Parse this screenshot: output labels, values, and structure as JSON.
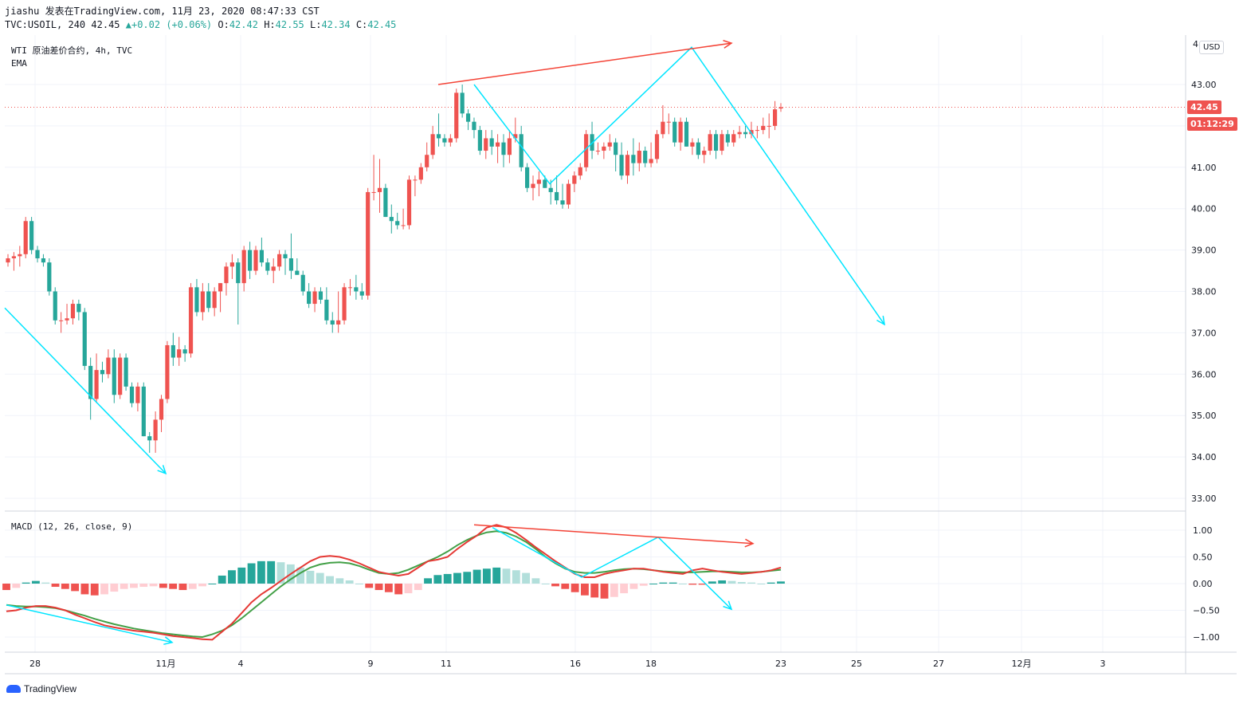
{
  "header": {
    "line1": "jiashu 发表在TradingView.com, 11月 23, 2020 08:47:33 CST",
    "symbol": "TVC:USOIL, 240",
    "last": "42.45",
    "change_arrow": "▲",
    "change": "+0.02 (+0.06%)",
    "o_label": "O:",
    "o": "42.42",
    "h_label": "H:",
    "h": "42.55",
    "l_label": "L:",
    "l": "42.34",
    "c_label": "C:",
    "c": "42.45"
  },
  "legend": {
    "main": "WTI 原油差价合约, 4h, TVC",
    "ema": "EMA",
    "macd": "MACD (12, 26, close, 9)"
  },
  "price_axis": {
    "currency": "USD",
    "top_label": "4",
    "last_price_tag": "42.45",
    "countdown_tag": "01:12:29"
  },
  "branding": {
    "logo_text": "TradingView"
  },
  "colors": {
    "up": "#ef5350",
    "down": "#26a69a",
    "macd_line": "#e53935",
    "signal_line": "#43a047",
    "annotation_cyan": "#00e5ff",
    "annotation_red": "#f44336"
  },
  "chart_data": [
    {
      "type": "candlestick",
      "title": "WTI 原油差价合约, 4h, TVC",
      "ylim": [
        32.6,
        44.0
      ],
      "yticks": [
        33.0,
        34.0,
        35.0,
        36.0,
        37.0,
        38.0,
        39.0,
        40.0,
        41.0,
        42.0,
        43.0
      ],
      "ytick_labels": [
        "33.00",
        "34.00",
        "35.00",
        "36.00",
        "37.00",
        "38.00",
        "39.00",
        "40.00",
        "41.00",
        "42.00",
        "43.00"
      ],
      "xtick_labels": [
        "28",
        "11月",
        "4",
        "9",
        "11",
        "16",
        "18",
        "23",
        "25",
        "27",
        "12月",
        "3"
      ],
      "candles": [
        [
          38.7,
          38.9,
          38.6,
          38.8
        ],
        [
          38.8,
          38.95,
          38.5,
          38.85
        ],
        [
          38.85,
          39.1,
          38.6,
          38.9
        ],
        [
          38.9,
          39.8,
          38.8,
          39.7
        ],
        [
          39.7,
          39.8,
          38.9,
          39.0
        ],
        [
          39.0,
          39.1,
          38.7,
          38.8
        ],
        [
          38.8,
          38.9,
          38.6,
          38.7
        ],
        [
          38.7,
          38.8,
          37.9,
          38.0
        ],
        [
          38.0,
          38.1,
          37.2,
          37.3
        ],
        [
          37.3,
          37.5,
          37.0,
          37.3
        ],
        [
          37.3,
          37.7,
          37.2,
          37.35
        ],
        [
          37.35,
          37.8,
          37.2,
          37.7
        ],
        [
          37.7,
          37.8,
          37.3,
          37.5
        ],
        [
          37.5,
          37.6,
          36.1,
          36.2
        ],
        [
          36.2,
          36.4,
          34.9,
          35.4
        ],
        [
          35.4,
          36.5,
          35.3,
          36.1
        ],
        [
          36.1,
          36.3,
          35.8,
          36.0
        ],
        [
          36.0,
          36.6,
          35.9,
          36.4
        ],
        [
          36.4,
          36.6,
          35.3,
          35.5
        ],
        [
          35.5,
          36.5,
          35.4,
          36.4
        ],
        [
          36.4,
          36.5,
          35.6,
          35.7
        ],
        [
          35.7,
          35.8,
          35.2,
          35.3
        ],
        [
          35.3,
          35.8,
          35.1,
          35.7
        ],
        [
          35.7,
          35.8,
          34.5,
          34.5
        ],
        [
          34.5,
          34.6,
          34.1,
          34.4
        ],
        [
          34.4,
          35.1,
          34.1,
          34.9
        ],
        [
          34.9,
          35.5,
          34.6,
          35.4
        ],
        [
          35.4,
          36.8,
          35.3,
          36.7
        ],
        [
          36.7,
          37.0,
          36.2,
          36.4
        ],
        [
          36.4,
          36.9,
          36.2,
          36.6
        ],
        [
          36.6,
          36.7,
          36.3,
          36.5
        ],
        [
          36.5,
          38.2,
          36.4,
          38.1
        ],
        [
          38.1,
          38.3,
          37.4,
          37.5
        ],
        [
          37.5,
          38.2,
          37.3,
          38.0
        ],
        [
          38.0,
          38.2,
          37.5,
          37.6
        ],
        [
          37.6,
          38.1,
          37.4,
          38.0
        ],
        [
          38.0,
          38.2,
          37.5,
          38.2
        ],
        [
          38.2,
          38.7,
          37.9,
          38.6
        ],
        [
          38.6,
          38.9,
          38.3,
          38.7
        ],
        [
          38.7,
          38.8,
          37.2,
          38.2
        ],
        [
          38.2,
          39.1,
          38.0,
          39.0
        ],
        [
          39.0,
          39.2,
          38.3,
          38.5
        ],
        [
          38.5,
          39.1,
          38.4,
          39.0
        ],
        [
          39.0,
          39.3,
          38.6,
          38.7
        ],
        [
          38.7,
          38.8,
          38.4,
          38.5
        ],
        [
          38.5,
          38.8,
          38.2,
          38.6
        ],
        [
          38.6,
          39.0,
          38.5,
          38.9
        ],
        [
          38.9,
          39.0,
          38.4,
          38.8
        ],
        [
          38.8,
          39.4,
          38.3,
          38.5
        ],
        [
          38.5,
          38.8,
          38.4,
          38.4
        ],
        [
          38.4,
          38.5,
          37.9,
          38.0
        ],
        [
          38.0,
          38.2,
          37.6,
          37.7
        ],
        [
          37.7,
          38.1,
          37.5,
          38.0
        ],
        [
          38.0,
          38.1,
          37.7,
          37.8
        ],
        [
          37.8,
          38.1,
          37.2,
          37.3
        ],
        [
          37.3,
          37.5,
          37.0,
          37.2
        ],
        [
          37.2,
          38.0,
          37.0,
          37.3
        ],
        [
          37.3,
          38.2,
          37.2,
          38.1
        ],
        [
          38.1,
          38.3,
          37.9,
          38.1
        ],
        [
          38.1,
          38.4,
          37.8,
          38.0
        ],
        [
          38.0,
          38.2,
          37.8,
          37.9
        ],
        [
          37.9,
          40.5,
          37.8,
          40.4
        ],
        [
          40.4,
          41.3,
          40.2,
          40.4
        ],
        [
          40.4,
          41.2,
          39.9,
          40.5
        ],
        [
          40.5,
          40.6,
          39.8,
          39.8
        ],
        [
          39.8,
          40.1,
          39.4,
          39.7
        ],
        [
          39.7,
          39.9,
          39.5,
          39.6
        ],
        [
          39.6,
          40.0,
          39.5,
          39.6
        ],
        [
          39.6,
          40.8,
          39.5,
          40.7
        ],
        [
          40.7,
          40.8,
          40.3,
          40.7
        ],
        [
          40.7,
          41.1,
          40.6,
          41.0
        ],
        [
          41.0,
          41.6,
          40.9,
          41.3
        ],
        [
          41.3,
          42.0,
          41.2,
          41.8
        ],
        [
          41.8,
          42.3,
          41.5,
          41.7
        ],
        [
          41.7,
          41.8,
          41.5,
          41.6
        ],
        [
          41.6,
          41.8,
          41.5,
          41.7
        ],
        [
          41.7,
          42.9,
          41.6,
          42.8
        ],
        [
          42.8,
          43.0,
          42.2,
          42.3
        ],
        [
          42.3,
          42.4,
          41.9,
          42.1
        ],
        [
          42.1,
          42.2,
          41.7,
          41.9
        ],
        [
          41.9,
          42.0,
          41.3,
          41.4
        ],
        [
          41.4,
          41.9,
          41.2,
          41.7
        ],
        [
          41.7,
          41.9,
          41.3,
          41.5
        ],
        [
          41.5,
          41.8,
          41.1,
          41.6
        ],
        [
          41.6,
          41.8,
          41.0,
          41.3
        ],
        [
          41.3,
          41.9,
          41.1,
          41.7
        ],
        [
          41.7,
          42.2,
          41.6,
          41.8
        ],
        [
          41.8,
          42.0,
          40.9,
          41.0
        ],
        [
          41.0,
          41.1,
          40.4,
          40.5
        ],
        [
          40.5,
          40.8,
          40.2,
          40.6
        ],
        [
          40.6,
          40.9,
          40.3,
          40.7
        ],
        [
          40.7,
          40.8,
          40.5,
          40.5
        ],
        [
          40.5,
          40.7,
          40.1,
          40.4
        ],
        [
          40.4,
          40.8,
          40.1,
          40.2
        ],
        [
          40.2,
          40.6,
          40.0,
          40.1
        ],
        [
          40.1,
          40.7,
          40.0,
          40.6
        ],
        [
          40.6,
          40.9,
          40.4,
          40.8
        ],
        [
          40.8,
          41.1,
          40.7,
          41.0
        ],
        [
          41.0,
          41.9,
          40.9,
          41.8
        ],
        [
          41.8,
          42.1,
          41.2,
          41.4
        ],
        [
          41.4,
          41.6,
          41.3,
          41.4
        ],
        [
          41.4,
          41.6,
          41.2,
          41.5
        ],
        [
          41.5,
          41.8,
          41.4,
          41.6
        ],
        [
          41.6,
          41.7,
          40.9,
          41.3
        ],
        [
          41.3,
          41.6,
          40.7,
          40.8
        ],
        [
          40.8,
          41.4,
          40.6,
          41.3
        ],
        [
          41.3,
          41.7,
          40.8,
          41.1
        ],
        [
          41.1,
          41.6,
          40.9,
          41.4
        ],
        [
          41.4,
          41.5,
          41.0,
          41.1
        ],
        [
          41.1,
          41.6,
          41.0,
          41.2
        ],
        [
          41.2,
          41.9,
          41.1,
          41.8
        ],
        [
          41.8,
          42.5,
          41.7,
          42.1
        ],
        [
          42.1,
          42.3,
          41.8,
          42.1
        ],
        [
          42.1,
          42.2,
          41.5,
          41.6
        ],
        [
          41.6,
          42.2,
          41.4,
          42.1
        ],
        [
          42.1,
          42.2,
          41.5,
          41.5
        ],
        [
          41.5,
          41.7,
          41.3,
          41.6
        ],
        [
          41.6,
          41.7,
          41.2,
          41.3
        ],
        [
          41.3,
          41.5,
          41.1,
          41.4
        ],
        [
          41.4,
          41.9,
          41.3,
          41.8
        ],
        [
          41.8,
          41.9,
          41.2,
          41.4
        ],
        [
          41.4,
          41.9,
          41.3,
          41.8
        ],
        [
          41.8,
          41.9,
          41.5,
          41.6
        ],
        [
          41.6,
          41.9,
          41.5,
          41.8
        ],
        [
          41.8,
          42.0,
          41.7,
          41.85
        ],
        [
          41.85,
          42.0,
          41.7,
          41.8
        ],
        [
          41.8,
          42.1,
          41.7,
          41.9
        ],
        [
          41.9,
          42.0,
          41.7,
          41.9
        ],
        [
          41.9,
          42.2,
          41.8,
          42.0
        ],
        [
          42.0,
          42.3,
          41.7,
          42.0
        ],
        [
          42.0,
          42.6,
          41.9,
          42.4
        ],
        [
          42.42,
          42.55,
          42.34,
          42.45
        ]
      ]
    },
    {
      "type": "line",
      "title": "MACD (12, 26, close, 9)",
      "ylim": [
        -1.35,
        1.2
      ],
      "yticks": [
        1.0,
        0.5,
        0.0,
        -0.5,
        -1.0
      ],
      "ytick_labels": [
        "1.00",
        "0.50",
        "0.00",
        "−0.50",
        "−1.00"
      ],
      "series": [
        {
          "type": "line",
          "values": [
            -0.52,
            -0.5,
            -0.45,
            -0.42,
            -0.42,
            -0.45,
            -0.5,
            -0.58,
            -0.65,
            -0.72,
            -0.78,
            -0.82,
            -0.85,
            -0.88,
            -0.9,
            -0.92,
            -0.95,
            -0.98,
            -1.0,
            -1.02,
            -1.04,
            -1.05,
            -0.9,
            -0.75,
            -0.55,
            -0.35,
            -0.2,
            -0.08,
            0.05,
            0.18,
            0.3,
            0.42,
            0.5,
            0.52,
            0.5,
            0.45,
            0.38,
            0.3,
            0.22,
            0.18,
            0.15,
            0.18,
            0.3,
            0.42,
            0.45,
            0.5,
            0.65,
            0.78,
            0.9,
            1.05,
            1.1,
            1.05,
            0.95,
            0.82,
            0.68,
            0.55,
            0.42,
            0.3,
            0.18,
            0.12,
            0.12,
            0.18,
            0.22,
            0.25,
            0.28,
            0.28,
            0.25,
            0.22,
            0.2,
            0.18,
            0.25,
            0.28,
            0.25,
            0.22,
            0.2,
            0.18,
            0.2,
            0.22,
            0.25,
            0.3
          ]
        },
        {
          "type": "line",
          "values": [
            -0.4,
            -0.42,
            -0.43,
            -0.43,
            -0.44,
            -0.46,
            -0.5,
            -0.55,
            -0.6,
            -0.66,
            -0.71,
            -0.76,
            -0.8,
            -0.84,
            -0.87,
            -0.9,
            -0.93,
            -0.95,
            -0.97,
            -0.99,
            -1.0,
            -0.95,
            -0.88,
            -0.78,
            -0.65,
            -0.5,
            -0.35,
            -0.2,
            -0.05,
            0.08,
            0.2,
            0.3,
            0.36,
            0.39,
            0.4,
            0.38,
            0.33,
            0.26,
            0.2,
            0.18,
            0.2,
            0.26,
            0.34,
            0.42,
            0.5,
            0.6,
            0.72,
            0.82,
            0.9,
            0.96,
            0.98,
            0.95,
            0.88,
            0.78,
            0.65,
            0.5,
            0.38,
            0.28,
            0.22,
            0.2,
            0.2,
            0.22,
            0.25,
            0.27,
            0.28,
            0.27,
            0.25,
            0.23,
            0.22,
            0.21,
            0.21,
            0.22,
            0.23,
            0.23,
            0.22,
            0.21,
            0.21,
            0.22,
            0.24,
            0.26
          ]
        },
        {
          "type": "bar",
          "values": [
            -0.12,
            -0.08,
            0.02,
            0.05,
            0.02,
            -0.06,
            -0.1,
            -0.14,
            -0.2,
            -0.22,
            -0.2,
            -0.15,
            -0.1,
            -0.08,
            -0.06,
            -0.05,
            -0.08,
            -0.1,
            -0.12,
            -0.1,
            -0.05,
            0.0,
            0.15,
            0.25,
            0.3,
            0.38,
            0.42,
            0.42,
            0.4,
            0.36,
            0.3,
            0.24,
            0.2,
            0.14,
            0.1,
            0.06,
            0.0,
            -0.08,
            -0.12,
            -0.16,
            -0.2,
            -0.18,
            -0.12,
            0.1,
            0.16,
            0.18,
            0.2,
            0.22,
            0.26,
            0.28,
            0.3,
            0.28,
            0.25,
            0.2,
            0.1,
            0.0,
            -0.05,
            -0.1,
            -0.16,
            -0.22,
            -0.26,
            -0.28,
            -0.25,
            -0.18,
            -0.1,
            -0.04,
            0.0,
            0.02,
            0.02,
            0.0,
            -0.02,
            -0.02,
            0.04,
            0.06,
            0.05,
            0.03,
            0.02,
            0.0,
            0.02,
            0.04
          ]
        }
      ]
    }
  ]
}
